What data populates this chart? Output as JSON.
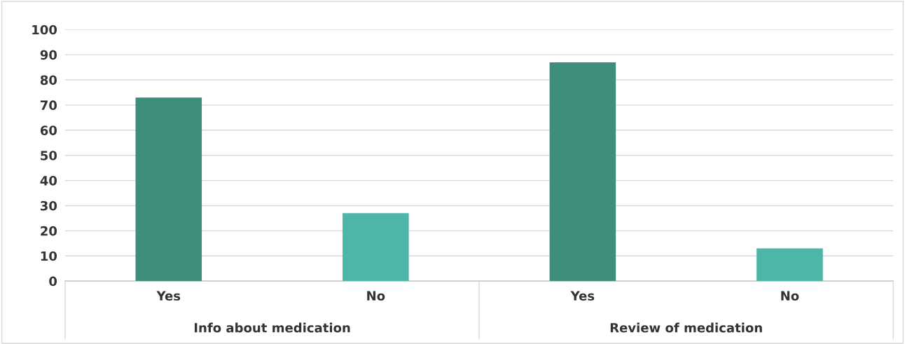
{
  "chart_data": {
    "type": "bar",
    "categories": [
      "Yes",
      "No",
      "Yes",
      "No"
    ],
    "values": [
      73,
      27,
      87,
      13
    ],
    "colors": [
      "#3d8f7c",
      "#4db6a8",
      "#3d8f7c",
      "#4db6a8"
    ],
    "ylim": [
      0,
      100
    ],
    "yticks": [
      0,
      10,
      20,
      30,
      40,
      50,
      60,
      70,
      80,
      90,
      100
    ],
    "grid": "y",
    "annotations": [
      "Info about medication",
      "Review of medication"
    ]
  }
}
